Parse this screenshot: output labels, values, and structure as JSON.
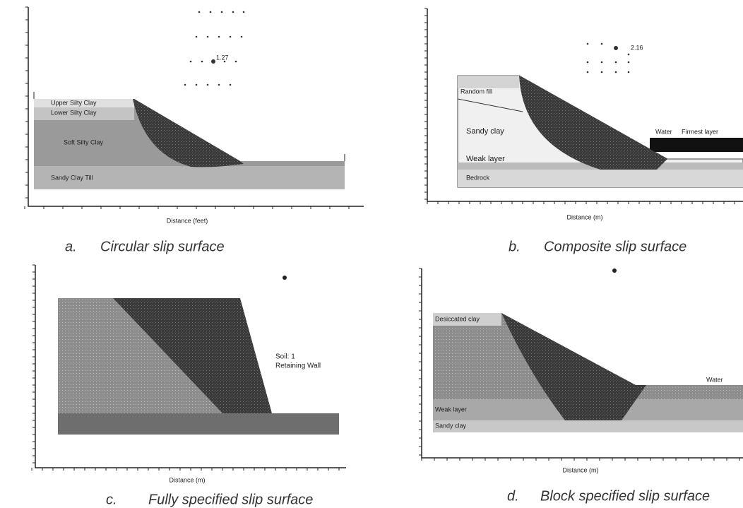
{
  "panels": [
    {
      "letter": "a.",
      "caption": "Circular slip surface",
      "axis_title": "Distance (feet)",
      "factor": "1.27",
      "labels": [
        "Upper Silty Clay",
        "Lower Silty Clay",
        "Soft Silty Clay",
        "Sandy Clay Till"
      ]
    },
    {
      "letter": "b.",
      "caption": "Composite slip surface",
      "axis_title": "Distance (m)",
      "factor": "2.16",
      "labels": [
        "Random fill",
        "Sandy clay",
        "Water",
        "Firmest layer",
        "Weak layer",
        "Bedrock"
      ]
    },
    {
      "letter": "c.",
      "caption": "Fully specified slip surface",
      "axis_title": "Distance (m)",
      "labels": [
        "Soil: 1",
        "Retaining Wall"
      ]
    },
    {
      "letter": "d.",
      "caption": "Block specified slip surface",
      "axis_title": "Distance (m)",
      "labels": [
        "Desiccated clay",
        "Water",
        "Weak layer",
        "Sandy clay"
      ]
    }
  ]
}
